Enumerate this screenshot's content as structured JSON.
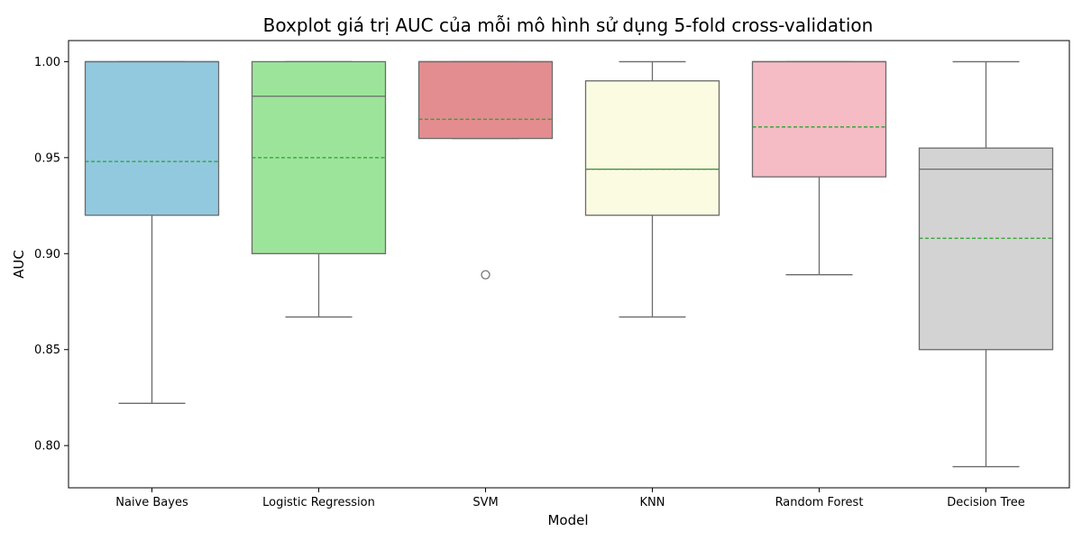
{
  "chart_data": {
    "type": "boxplot",
    "title": "Boxplot giá trị AUC của mỗi mô hình sử dụng 5-fold cross-validation",
    "xlabel": "Model",
    "ylabel": "AUC",
    "ylim": [
      0.778,
      1.011
    ],
    "yticks": [
      0.8,
      0.85,
      0.9,
      0.95,
      1.0
    ],
    "ytick_labels": [
      "0.80",
      "0.85",
      "0.90",
      "0.95",
      "1.00"
    ],
    "grid": false,
    "mean_line_style": "dashed",
    "mean_line_color": "#2ca02c",
    "edge_color": "#6b6b6b",
    "series": [
      {
        "name": "Naive Bayes",
        "color": "#92c9df",
        "whisker_low": 0.822,
        "q1": 0.92,
        "median": 1.0,
        "q3": 1.0,
        "whisker_high": 1.0,
        "mean": 0.948,
        "outliers": []
      },
      {
        "name": "Logistic Regression",
        "color": "#9de49b",
        "whisker_low": 0.867,
        "q1": 0.9,
        "median": 0.982,
        "q3": 1.0,
        "whisker_high": 1.0,
        "mean": 0.95,
        "outliers": []
      },
      {
        "name": "SVM",
        "color": "#e38d90",
        "whisker_low": 0.96,
        "q1": 0.96,
        "median": 1.0,
        "q3": 1.0,
        "whisker_high": 1.0,
        "mean": 0.97,
        "outliers": [
          0.889
        ]
      },
      {
        "name": "KNN",
        "color": "#fbfbe2",
        "whisker_low": 0.867,
        "q1": 0.92,
        "median": 0.944,
        "q3": 0.99,
        "whisker_high": 1.0,
        "mean": 0.944,
        "outliers": []
      },
      {
        "name": "Random Forest",
        "color": "#f5bcc6",
        "whisker_low": 0.889,
        "q1": 0.94,
        "median": 1.0,
        "q3": 1.0,
        "whisker_high": 1.0,
        "mean": 0.966,
        "outliers": []
      },
      {
        "name": "Decision Tree",
        "color": "#d3d3d3",
        "whisker_low": 0.789,
        "q1": 0.85,
        "median": 0.944,
        "q3": 0.955,
        "whisker_high": 1.0,
        "mean": 0.908,
        "outliers": []
      }
    ]
  }
}
